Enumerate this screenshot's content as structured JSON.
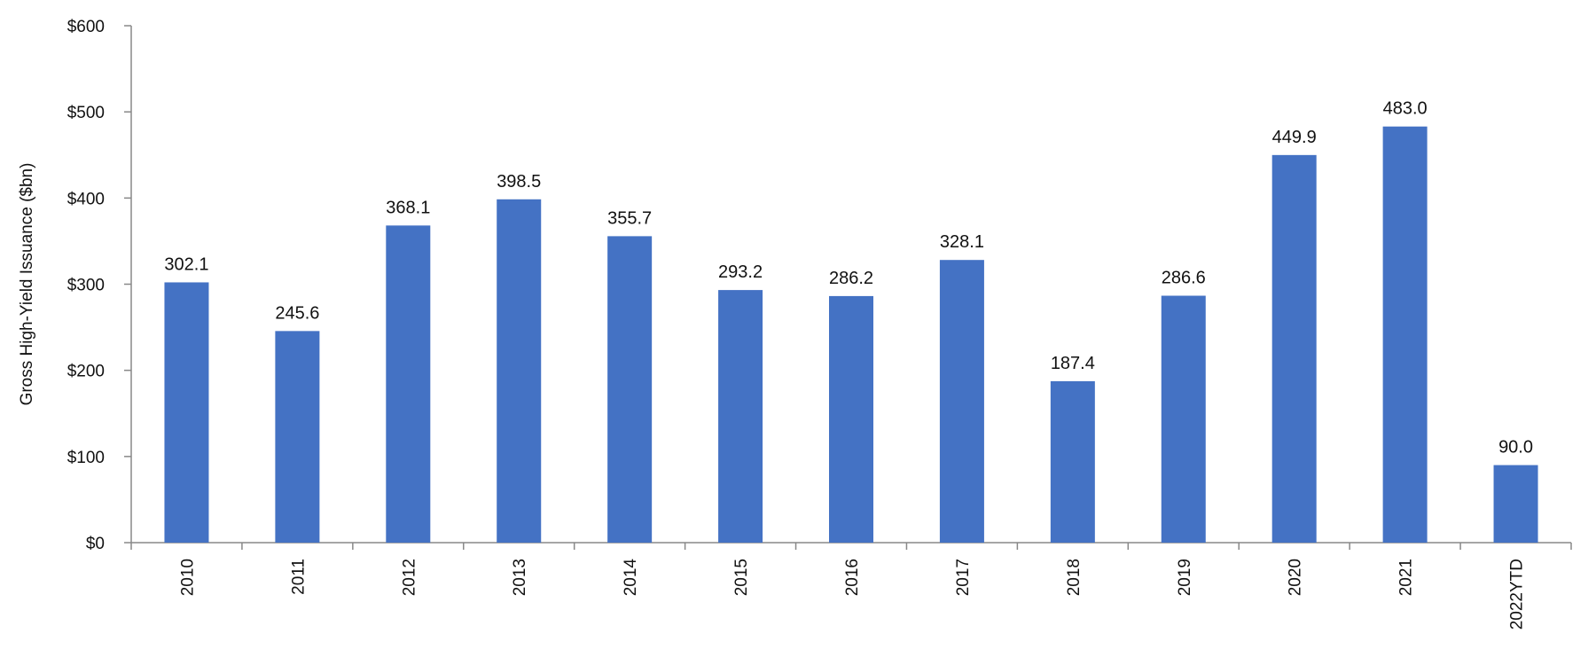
{
  "chart_data": {
    "type": "bar",
    "categories": [
      "2010",
      "2011",
      "2012",
      "2013",
      "2014",
      "2015",
      "2016",
      "2017",
      "2018",
      "2019",
      "2020",
      "2021",
      "2022YTD"
    ],
    "series": [
      {
        "values": [
          302.1,
          245.6,
          368.1,
          398.5,
          355.7,
          293.2,
          286.2,
          328.1,
          187.4,
          286.6,
          449.9,
          483.0,
          90.0
        ],
        "data_labels": [
          "302.1",
          "245.6",
          "368.1",
          "398.5",
          "355.7",
          "293.2",
          "286.2",
          "328.1",
          "187.4",
          "286.6",
          "449.9",
          "483.0",
          "90.0"
        ]
      }
    ],
    "ylabel": "Gross High-Yield Issuance ($bn)",
    "xlabel": "",
    "ylim": [
      0,
      600
    ],
    "yticks": [
      0,
      100,
      200,
      300,
      400,
      500,
      600
    ],
    "ytick_labels": [
      "$0",
      "$100",
      "$200",
      "$300",
      "$400",
      "$500",
      "$600"
    ],
    "grid": false,
    "legend": "none",
    "bar_color": "#4472C4"
  }
}
